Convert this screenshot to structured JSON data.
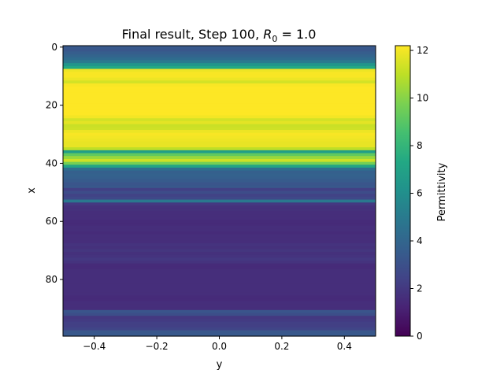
{
  "chart_data": {
    "type": "heatmap",
    "title_main": "Final result, Step 100, ",
    "title_symbol": "R",
    "title_subscript": "0",
    "title_tail": " = 1.0",
    "xlabel": "y",
    "ylabel": "x",
    "colorbar_label": "Permittivity",
    "x_range": [
      -0.5,
      0.5
    ],
    "x_ticks": [
      -0.4,
      -0.2,
      0.0,
      0.2,
      0.4
    ],
    "x_tick_labels": [
      "−0.4",
      "−0.2",
      "0.0",
      "0.2",
      "0.4"
    ],
    "y_range": [
      -0.5,
      99.5
    ],
    "y_ticks": [
      0,
      20,
      40,
      60,
      80
    ],
    "y_tick_labels": [
      "0",
      "20",
      "40",
      "60",
      "80"
    ],
    "colorbar_range": [
      0,
      12.2
    ],
    "colorbar_ticks": [
      0,
      2,
      4,
      6,
      8,
      10,
      12
    ],
    "colorbar_tick_labels": [
      "0",
      "2",
      "4",
      "6",
      "8",
      "10",
      "12"
    ],
    "colormap": "viridis",
    "values": [
      3.4,
      3.3,
      3.6,
      3.9,
      4.3,
      5.0,
      6.3,
      7.3,
      11.9,
      12.1,
      12.1,
      11.9,
      11.4,
      12.1,
      12.2,
      12.2,
      12.2,
      12.2,
      12.2,
      12.2,
      12.2,
      12.2,
      12.2,
      12.2,
      12.0,
      11.4,
      11.7,
      11.2,
      11.3,
      11.9,
      12.1,
      12.0,
      11.9,
      11.8,
      11.8,
      11.0,
      6.8,
      9.2,
      10.3,
      11.3,
      9.6,
      7.1,
      4.4,
      3.7,
      3.8,
      3.7,
      3.5,
      3.2,
      3.3,
      2.3,
      2.8,
      2.4,
      2.6,
      4.9,
      2.0,
      1.7,
      1.7,
      1.6,
      1.6,
      1.6,
      1.5,
      1.5,
      1.6,
      1.6,
      1.5,
      1.6,
      1.6,
      1.6,
      1.8,
      1.7,
      1.9,
      1.7,
      1.8,
      2.0,
      1.8,
      1.5,
      1.5,
      1.6,
      1.6,
      1.6,
      1.6,
      1.6,
      1.6,
      1.6,
      1.6,
      1.6,
      1.5,
      1.5,
      1.6,
      1.6,
      1.6,
      3.2,
      2.9,
      2.0,
      2.1,
      2.3,
      2.3,
      2.5,
      3.3,
      3.4
    ]
  }
}
